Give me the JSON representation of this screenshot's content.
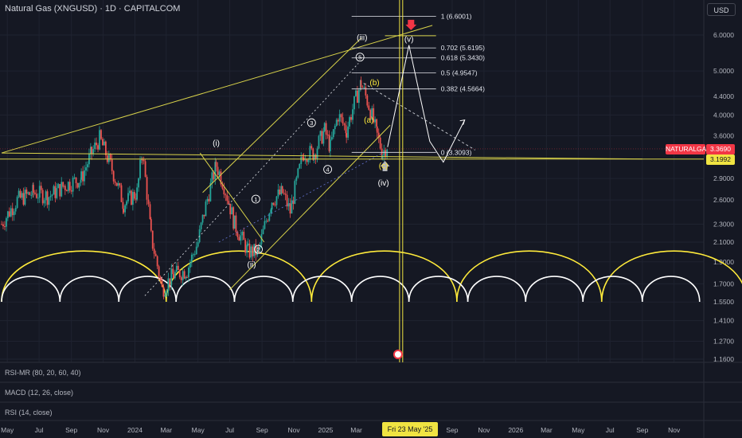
{
  "header": {
    "title": "Natural Gas (XNGUSD) · 1D · CAPITALCOM",
    "currency": "USD"
  },
  "price_tags": {
    "name": "NATURALGAS",
    "last": "3.3690",
    "line": "3.1992"
  },
  "date_tag": "Fri 23 May '25",
  "panes": [
    {
      "label": "RSI-MR (80, 20, 60, 40)"
    },
    {
      "label": "MACD (12, 26, close)"
    },
    {
      "label": "RSI (14, close)"
    }
  ],
  "colors": {
    "background": "#151823",
    "up": "#26a69a",
    "down": "#ef5350",
    "trend": "#d8d24a",
    "cycle_yellow": "#ffeb3b",
    "cycle_white": "#ffffff",
    "tag_red": "#f23645",
    "tag_yellow": "#f0e442"
  },
  "chart_data": {
    "type": "candlestick",
    "scale": "log",
    "yticks": [
      6.0,
      5.0,
      4.4,
      4.0,
      3.6,
      2.9,
      2.6,
      2.3,
      2.1,
      1.9,
      1.7,
      1.55,
      1.41,
      1.27,
      1.16
    ],
    "ytick_labels": [
      "6.0000",
      "5.0000",
      "4.4000",
      "4.0000",
      "3.6000",
      "2.9000",
      "2.6000",
      "2.3000",
      "2.1000",
      "1.9000",
      "1.7000",
      "1.5500",
      "1.4100",
      "1.2700",
      "1.1600"
    ],
    "xticks": [
      {
        "label": "May",
        "date": "2023-05-01"
      },
      {
        "label": "Jul",
        "date": "2023-07-01"
      },
      {
        "label": "Sep",
        "date": "2023-09-01"
      },
      {
        "label": "Nov",
        "date": "2023-11-01"
      },
      {
        "label": "2024",
        "date": "2024-01-01"
      },
      {
        "label": "Mar",
        "date": "2024-03-01"
      },
      {
        "label": "May",
        "date": "2024-05-01"
      },
      {
        "label": "Jul",
        "date": "2024-07-01"
      },
      {
        "label": "Sep",
        "date": "2024-09-01"
      },
      {
        "label": "Nov",
        "date": "2024-11-01"
      },
      {
        "label": "2025",
        "date": "2025-01-01"
      },
      {
        "label": "Mar",
        "date": "2025-03-01"
      },
      {
        "label": "Sep",
        "date": "2025-09-01"
      },
      {
        "label": "Nov",
        "date": "2025-11-01"
      },
      {
        "label": "2026",
        "date": "2026-01-01"
      },
      {
        "label": "Mar",
        "date": "2026-03-01"
      },
      {
        "label": "May",
        "date": "2026-05-01"
      },
      {
        "label": "Jul",
        "date": "2026-07-01"
      },
      {
        "label": "Sep",
        "date": "2026-09-01"
      },
      {
        "label": "Nov",
        "date": "2026-11-01"
      }
    ],
    "price_path": [
      [
        "2023-04-20",
        2.3
      ],
      [
        "2023-05-20",
        2.6
      ],
      [
        "2023-06-20",
        2.7
      ],
      [
        "2023-07-20",
        2.65
      ],
      [
        "2023-08-20",
        2.8
      ],
      [
        "2023-09-20",
        2.9
      ],
      [
        "2023-10-10",
        3.3
      ],
      [
        "2023-10-25",
        3.55
      ],
      [
        "2023-11-15",
        3.1
      ],
      [
        "2023-12-10",
        2.55
      ],
      [
        "2024-01-05",
        2.7
      ],
      [
        "2024-01-15",
        3.3
      ],
      [
        "2024-02-01",
        2.15
      ],
      [
        "2024-02-22",
        1.65
      ],
      [
        "2024-03-15",
        1.78
      ],
      [
        "2024-04-10",
        1.82
      ],
      [
        "2024-05-01",
        2.1
      ],
      [
        "2024-06-05",
        3.1
      ],
      [
        "2024-06-20",
        2.8
      ],
      [
        "2024-07-10",
        2.3
      ],
      [
        "2024-08-05",
        2.0
      ],
      [
        "2024-08-25",
        2.0
      ],
      [
        "2024-09-20",
        2.6
      ],
      [
        "2024-10-10",
        2.7
      ],
      [
        "2024-10-25",
        2.45
      ],
      [
        "2024-11-20",
        3.3
      ],
      [
        "2024-12-10",
        3.3
      ],
      [
        "2024-12-30",
        3.7
      ],
      [
        "2025-01-10",
        3.4
      ],
      [
        "2025-01-25",
        4.0
      ],
      [
        "2025-02-10",
        3.7
      ],
      [
        "2025-03-10",
        4.7
      ],
      [
        "2025-03-25",
        4.2
      ],
      [
        "2025-04-10",
        3.6
      ],
      [
        "2025-04-20",
        3.3
      ],
      [
        "2025-04-30",
        3.45
      ]
    ],
    "annotations": [
      {
        "label": "(i)",
        "date": "2024-06-05",
        "price": 3.42
      },
      {
        "label": "(ii)",
        "date": "2024-08-12",
        "price": 1.85
      },
      {
        "label": "(iii)",
        "date": "2025-03-12",
        "price": 5.85
      },
      {
        "label": "(iv)",
        "date": "2025-04-22",
        "price": 2.8
      },
      {
        "label": "(v)",
        "date": "2025-06-10",
        "price": 5.8
      },
      {
        "label": "(a)",
        "date": "2025-03-25",
        "price": 3.85
      },
      {
        "label": "(b)",
        "date": "2025-04-05",
        "price": 4.65
      },
      {
        "label": "(c)",
        "date": "2025-04-22",
        "price": 3.05
      },
      {
        "label": "1",
        "date": "2024-08-20",
        "price": 2.58
      },
      {
        "label": "2",
        "date": "2024-08-25",
        "price": 2.0
      },
      {
        "label": "3",
        "date": "2024-12-05",
        "price": 3.8
      },
      {
        "label": "4",
        "date": "2025-01-05",
        "price": 3.0
      },
      {
        "label": "5",
        "date": "2025-03-08",
        "price": 5.3
      }
    ],
    "fib_levels": [
      {
        "label": "1 (6.6001)",
        "value": 6.6001
      },
      {
        "label": "0.702 (5.6195)",
        "value": 5.6195
      },
      {
        "label": "0.618 (5.3430)",
        "value": 5.343
      },
      {
        "label": "0.5 (4.9547)",
        "value": 4.9547
      },
      {
        "label": "0.382 (4.5664)",
        "value": 4.5664
      },
      {
        "label": "0 (3.3093)",
        "value": 3.3093
      }
    ],
    "horizontal_line": 3.1992,
    "last_price": 3.369,
    "cycle_lows_yellow": [
      "2023-04-20",
      "2024-03-01",
      "2024-12-05",
      "2025-09-10",
      "2026-06-15",
      "2027-03-20"
    ],
    "cycle_lows_white": [
      "2023-04-20",
      "2023-08-10",
      "2023-12-01",
      "2024-03-20",
      "2024-07-10",
      "2024-10-30",
      "2025-02-20",
      "2025-06-10",
      "2025-10-01",
      "2026-01-20",
      "2026-05-10",
      "2026-09-01",
      "2026-12-20"
    ],
    "projection_path": [
      [
        "2025-04-30",
        3.4
      ],
      [
        "2025-06-10",
        5.7
      ],
      [
        "2025-07-20",
        3.5
      ],
      [
        "2025-08-15",
        3.15
      ],
      [
        "2025-09-25",
        3.9
      ]
    ],
    "vertical_lines": [
      "2025-05-23",
      "2025-05-29"
    ]
  }
}
